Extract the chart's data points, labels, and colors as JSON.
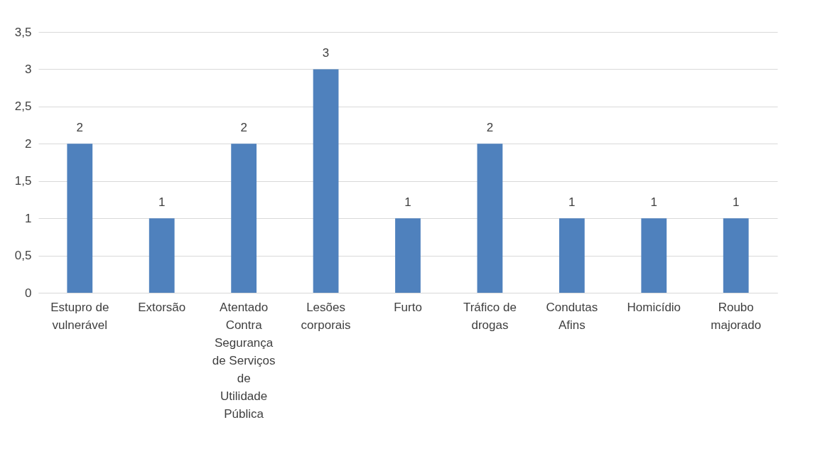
{
  "chart_data": {
    "type": "bar",
    "categories": [
      "Estupro de vulnerável",
      "Extorsão",
      "Atentado Contra Segurança de Serviços de Utilidade Pública",
      "Lesões corporais",
      "Furto",
      "Tráfico de drogas",
      "Condutas Afins",
      "Homicídio",
      "Roubo majorado"
    ],
    "values": [
      2,
      1,
      2,
      3,
      1,
      2,
      1,
      1,
      1
    ],
    "color": "#4f81bd",
    "ylim": [
      0,
      3.5
    ],
    "yticks": [
      0,
      {
        "value": 0.5,
        "label": "0,5"
      },
      1,
      {
        "value": 1.5,
        "label": "1,5"
      },
      2,
      {
        "value": 2.5,
        "label": "2,5"
      },
      3,
      {
        "value": 3.5,
        "label": "3,5"
      }
    ],
    "grid": "y",
    "data_labels": true
  }
}
